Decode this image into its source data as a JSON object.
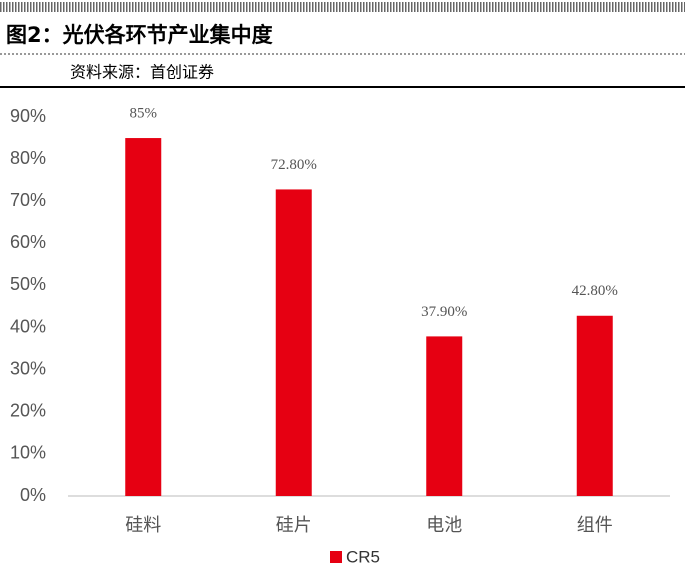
{
  "chart_data": {
    "type": "bar",
    "title": "图2：光伏各环节产业集中度",
    "subtitle": "资料来源：首创证券",
    "categories": [
      "硅料",
      "硅片",
      "电池",
      "组件"
    ],
    "series": [
      {
        "name": "CR5",
        "color": "#e60012",
        "values": [
          85,
          72.8,
          37.9,
          42.8
        ],
        "value_labels": [
          "85%",
          "72.80%",
          "37.90%",
          "42.80%"
        ]
      }
    ],
    "ylim": [
      0,
      90
    ],
    "yticks": [
      {
        "value": 0,
        "label": "0%"
      },
      {
        "value": 10,
        "label": "10%"
      },
      {
        "value": 20,
        "label": "20%"
      },
      {
        "value": 30,
        "label": "30%"
      },
      {
        "value": 40,
        "label": "40%"
      },
      {
        "value": 50,
        "label": "50%"
      },
      {
        "value": 60,
        "label": "60%"
      },
      {
        "value": 70,
        "label": "70%"
      },
      {
        "value": 80,
        "label": "80%"
      },
      {
        "value": 90,
        "label": "90%"
      }
    ],
    "legend": "bottom"
  }
}
